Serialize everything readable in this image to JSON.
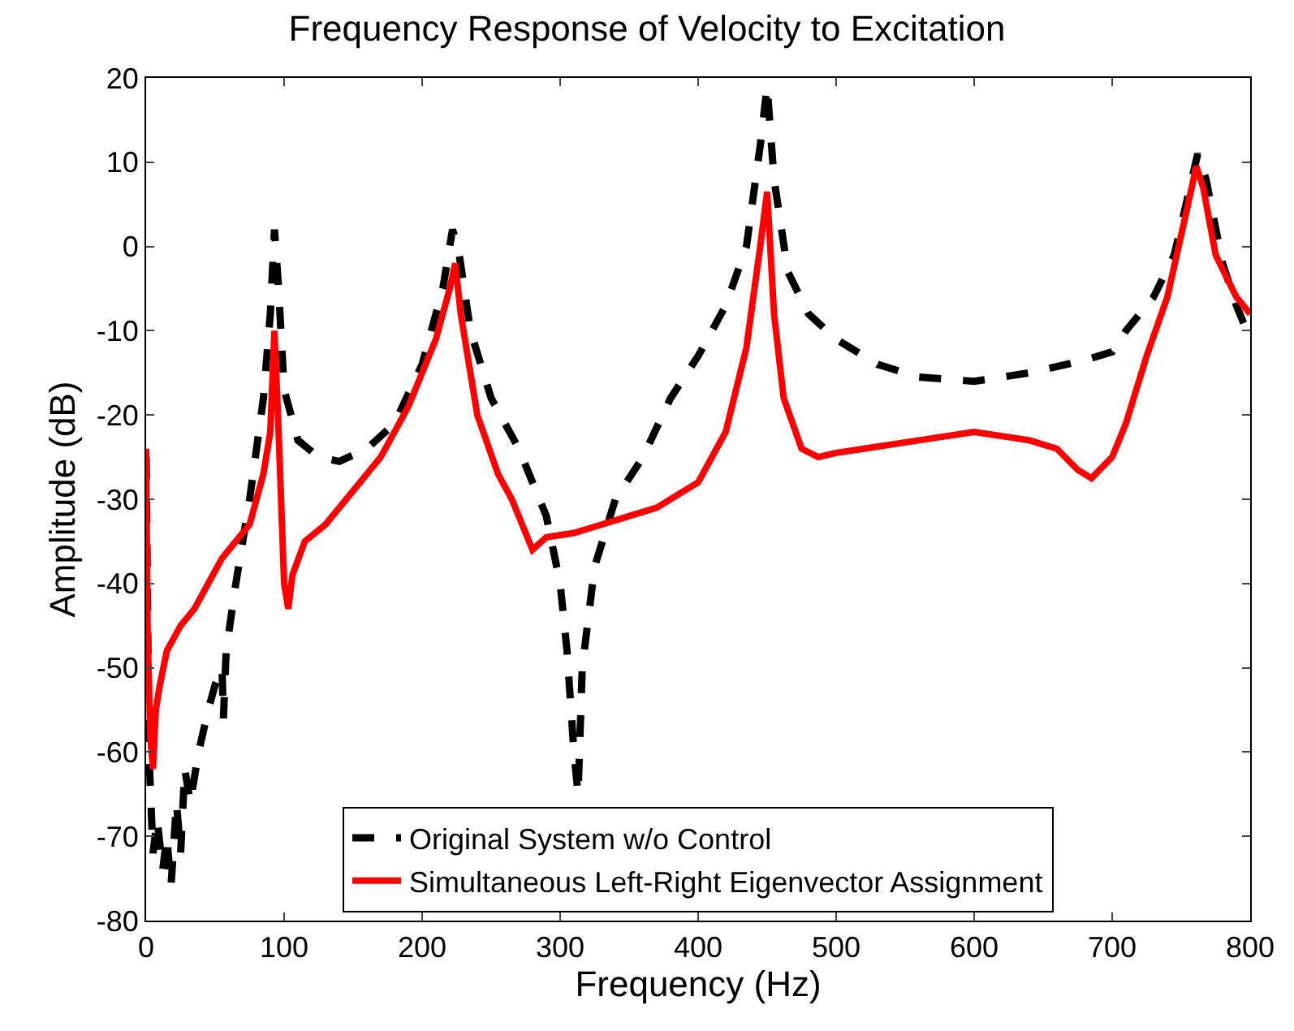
{
  "chart_data": {
    "type": "line",
    "title": "Frequency Response of Velocity to Excitation",
    "xlabel": "Frequency (Hz)",
    "ylabel": "Amplitude (dB)",
    "xlim": [
      0,
      800
    ],
    "xticks": [
      0,
      100,
      200,
      300,
      400,
      500,
      600,
      700,
      800
    ],
    "ylim": [
      -80,
      20
    ],
    "yticks": [
      -80,
      -70,
      -60,
      -50,
      -40,
      -30,
      -20,
      -10,
      0,
      10,
      20
    ],
    "legend": "bottom",
    "marker": "none",
    "series": [
      {
        "name": "Original System w/o Control",
        "color": "#000000",
        "line_style": "dashed",
        "x": [
          0,
          2,
          5,
          8,
          12,
          15,
          18,
          22,
          25,
          28,
          32,
          38,
          45,
          50,
          55,
          56,
          58,
          65,
          75,
          85,
          90,
          93,
          96,
          100,
          110,
          125,
          140,
          160,
          180,
          200,
          215,
          222,
          226,
          235,
          250,
          270,
          290,
          300,
          305,
          310,
          313,
          316,
          325,
          340,
          360,
          380,
          400,
          420,
          435,
          445,
          450,
          455,
          465,
          480,
          500,
          530,
          560,
          600,
          640,
          680,
          700,
          710,
          730,
          745,
          755,
          762,
          768,
          780,
          790,
          800
        ],
        "values": [
          -25,
          -60,
          -72,
          -68,
          -74,
          -70,
          -76,
          -66,
          -72,
          -62,
          -66,
          -60,
          -55,
          -52,
          -50,
          -56,
          -48,
          -40,
          -30,
          -18,
          -8,
          2,
          -5,
          -17,
          -23,
          -25,
          -25.5,
          -24,
          -21,
          -14,
          -5,
          2,
          0,
          -10,
          -18,
          -24,
          -32,
          -40,
          -48,
          -60,
          -65,
          -50,
          -38,
          -30,
          -25,
          -18,
          -13,
          -7,
          0,
          12,
          19,
          8,
          -3,
          -8,
          -11,
          -14,
          -15.5,
          -16,
          -15,
          -13.5,
          -12.5,
          -10,
          -6,
          -1,
          6,
          11,
          8,
          -2,
          -7,
          -11
        ]
      },
      {
        "name": "Simultaneous Left-Right Eigenvector Assignment",
        "color": "#ff0000",
        "line_style": "solid",
        "x": [
          0,
          1,
          3,
          5,
          7,
          10,
          15,
          25,
          35,
          45,
          55,
          65,
          75,
          85,
          90,
          93,
          96,
          100,
          103,
          106,
          115,
          130,
          150,
          170,
          190,
          210,
          220,
          224,
          228,
          240,
          255,
          265,
          280,
          290,
          310,
          340,
          370,
          400,
          420,
          435,
          445,
          450,
          455,
          462,
          475,
          487,
          500,
          520,
          560,
          600,
          640,
          660,
          675,
          685,
          700,
          710,
          725,
          740,
          755,
          761,
          766,
          775,
          790,
          800
        ],
        "values": [
          -24,
          -45,
          -58,
          -62,
          -55,
          -52,
          -48,
          -45,
          -43,
          -40,
          -37,
          -35,
          -33,
          -27,
          -22,
          -10,
          -22,
          -40,
          -43,
          -39,
          -35,
          -33,
          -29,
          -25,
          -19,
          -11,
          -5,
          -2,
          -8,
          -20,
          -27,
          -30,
          -36,
          -34.5,
          -34,
          -32.5,
          -31,
          -28,
          -22,
          -12,
          0,
          6.5,
          -8,
          -18,
          -24,
          -25,
          -24.5,
          -24,
          -23,
          -22,
          -23,
          -24,
          -26.5,
          -27.5,
          -25,
          -21,
          -13,
          -6,
          5,
          9.5,
          7,
          -1,
          -6,
          -8
        ]
      }
    ]
  }
}
